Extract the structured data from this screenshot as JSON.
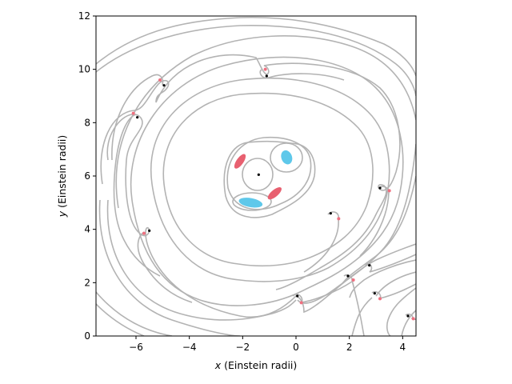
{
  "chart_data": {
    "type": "scatter",
    "xlabel_var": "x",
    "xlabel_text": " (Einstein radii)",
    "ylabel_var": "y",
    "ylabel_text": " (Einstein radii)",
    "xlim": [
      -7.5,
      4.5
    ],
    "ylim": [
      0,
      12
    ],
    "xticks": [
      -6,
      -4,
      -2,
      0,
      2,
      4
    ],
    "xtick_labels": [
      "−6",
      "−4",
      "−2",
      "0",
      "2",
      "4"
    ],
    "yticks": [
      0,
      2,
      4,
      6,
      8,
      10,
      12
    ],
    "ytick_labels": [
      "0",
      "2",
      "4",
      "6",
      "8",
      "10",
      "12"
    ],
    "grid": false,
    "colors": {
      "contour": "#b3b3b3",
      "image_red": "#e86070",
      "image_blue": "#5ec8ea",
      "lens": "#000000",
      "saddle": "#f07080"
    },
    "lens_positions": [
      {
        "x": -1.4,
        "y": 6.05
      },
      {
        "x": -1.1,
        "y": 9.75
      },
      {
        "x": -4.95,
        "y": 9.4
      },
      {
        "x": -5.95,
        "y": 8.2
      },
      {
        "x": -5.5,
        "y": 3.95
      },
      {
        "x": 1.3,
        "y": 4.6
      },
      {
        "x": 3.15,
        "y": 5.55
      },
      {
        "x": 2.75,
        "y": 2.65
      },
      {
        "x": 1.95,
        "y": 2.25
      },
      {
        "x": 0.05,
        "y": 1.5
      },
      {
        "x": 2.95,
        "y": 1.6
      },
      {
        "x": 4.2,
        "y": 0.75
      }
    ],
    "saddle_points": [
      {
        "x": -1.15,
        "y": 10.0
      },
      {
        "x": -5.1,
        "y": 9.6
      },
      {
        "x": -6.1,
        "y": 8.35
      },
      {
        "x": -5.7,
        "y": 3.85
      },
      {
        "x": 1.6,
        "y": 4.4
      },
      {
        "x": 3.5,
        "y": 5.45
      },
      {
        "x": 2.15,
        "y": 2.1
      },
      {
        "x": 0.2,
        "y": 1.25
      },
      {
        "x": 3.15,
        "y": 1.4
      },
      {
        "x": 4.4,
        "y": 0.65
      }
    ],
    "images": [
      {
        "x": -2.1,
        "y": 6.55,
        "rx": 0.13,
        "ry": 0.32,
        "angle": 35,
        "parity": "red"
      },
      {
        "x": -0.8,
        "y": 5.35,
        "rx": 0.13,
        "ry": 0.32,
        "angle": 50,
        "parity": "red"
      },
      {
        "x": -0.35,
        "y": 6.7,
        "rx": 0.2,
        "ry": 0.27,
        "angle": -20,
        "parity": "blue"
      },
      {
        "x": -1.7,
        "y": 5.0,
        "rx": 0.45,
        "ry": 0.17,
        "angle": 10,
        "parity": "blue"
      }
    ]
  }
}
